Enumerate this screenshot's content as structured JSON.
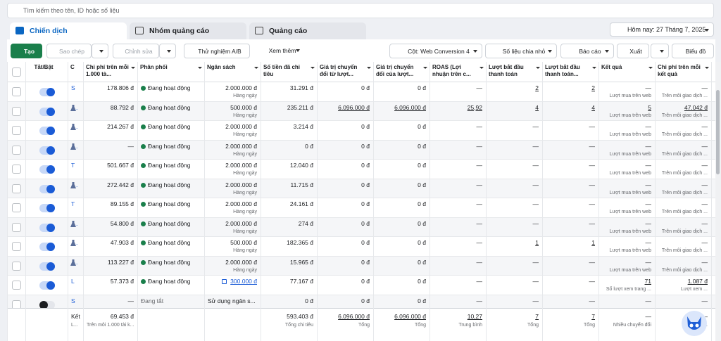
{
  "search_placeholder": "Tìm kiếm theo tên, ID hoặc số liệu",
  "tabs": [
    "Chiến dịch",
    "Nhóm quảng cáo",
    "Quảng cáo"
  ],
  "date_range": "Hôm nay: 27 Tháng 7, 2025",
  "toolbar": {
    "create": "Tạo",
    "copy": "Sao chép",
    "edit": "Chỉnh sửa",
    "ab_test": "Thử nghiệm A/B",
    "more": "Xem thêm",
    "columns": "Cột: Web Conversion 4",
    "breakdown": "Số liệu chia nhỏ",
    "reports": "Báo cáo",
    "export": "Xuất",
    "chart": "Biểu đồ"
  },
  "table": {
    "headers": [
      "Tắt/Bật",
      "C",
      "Chi phí trên mỗi 1.000 tà...",
      "Phân phối",
      "Ngân sách",
      "Số tiền đã chi tiêu",
      "Giá trị chuyển đổi từ lượt...",
      "Giá trị chuyển đổi của lượt...",
      "ROAS (Lợi nhuận trên c...",
      "Lượt bắt đầu thanh toán",
      "Lượt bắt đầu thanh toán...",
      "Kết quả",
      "Chi phí trên mỗi kết quả"
    ],
    "rows": [
      {
        "name": "S",
        "flask": false,
        "on": true,
        "cpm": "178.806 đ",
        "delivery": "Đang hoạt động",
        "budget": "2.000.000 đ",
        "budget_note": "Hàng ngày",
        "spent": "31.291 đ",
        "conv1": "0 đ",
        "conv2": "0 đ",
        "roas": "—",
        "chk1": "2",
        "chk2": "2",
        "result": "—",
        "result_note": "Lượt mua trên web",
        "cpr": "—",
        "cpr_note": "Trên mỗi giao dịch ..."
      },
      {
        "name": ".",
        "flask": true,
        "on": true,
        "cpm": "88.792 đ",
        "delivery": "Đang hoạt động",
        "budget": "500.000 đ",
        "budget_note": "Hàng ngày",
        "spent": "235.211 đ",
        "conv1": "6.096.000 đ",
        "conv2": "6.096.000 đ",
        "roas": "25,92",
        "chk1": "4",
        "chk2": "4",
        "result": "5",
        "result_note": "Lượt mua trên web",
        "cpr": "47.042 đ",
        "cpr_note": "Trên mỗi giao dịch ..."
      },
      {
        "name": ".",
        "flask": true,
        "on": true,
        "cpm": "214.267 đ",
        "delivery": "Đang hoạt động",
        "budget": "2.000.000 đ",
        "budget_note": "Hàng ngày",
        "spent": "3.214 đ",
        "conv1": "0 đ",
        "conv2": "0 đ",
        "roas": "—",
        "chk1": "—",
        "chk2": "—",
        "result": "—",
        "result_note": "Lượt mua trên web",
        "cpr": "—",
        "cpr_note": "Trên mỗi giao dịch ..."
      },
      {
        "name": ".",
        "flask": true,
        "on": true,
        "cpm": "—",
        "delivery": "Đang hoạt động",
        "budget": "2.000.000 đ",
        "budget_note": "Hàng ngày",
        "spent": "0 đ",
        "conv1": "0 đ",
        "conv2": "0 đ",
        "roas": "—",
        "chk1": "—",
        "chk2": "—",
        "result": "—",
        "result_note": "Lượt mua trên web",
        "cpr": "—",
        "cpr_note": "Trên mỗi giao dịch ..."
      },
      {
        "name": "T",
        "flask": false,
        "on": true,
        "cpm": "501.667 đ",
        "delivery": "Đang hoạt động",
        "budget": "2.000.000 đ",
        "budget_note": "Hàng ngày",
        "spent": "12.040 đ",
        "conv1": "0 đ",
        "conv2": "0 đ",
        "roas": "—",
        "chk1": "—",
        "chk2": "—",
        "result": "—",
        "result_note": "Lượt mua trên web",
        "cpr": "—",
        "cpr_note": "Trên mỗi giao dịch ..."
      },
      {
        "name": ".",
        "flask": true,
        "on": true,
        "cpm": "272.442 đ",
        "delivery": "Đang hoạt động",
        "budget": "2.000.000 đ",
        "budget_note": "Hàng ngày",
        "spent": "11.715 đ",
        "conv1": "0 đ",
        "conv2": "0 đ",
        "roas": "—",
        "chk1": "—",
        "chk2": "—",
        "result": "—",
        "result_note": "Lượt mua trên web",
        "cpr": "—",
        "cpr_note": "Trên mỗi giao dịch ..."
      },
      {
        "name": "T",
        "flask": false,
        "on": true,
        "cpm": "89.155 đ",
        "delivery": "Đang hoạt động",
        "budget": "2.000.000 đ",
        "budget_note": "Hàng ngày",
        "spent": "24.161 đ",
        "conv1": "0 đ",
        "conv2": "0 đ",
        "roas": "—",
        "chk1": "—",
        "chk2": "—",
        "result": "—",
        "result_note": "Lượt mua trên web",
        "cpr": "—",
        "cpr_note": "Trên mỗi giao dịch ..."
      },
      {
        "name": ".",
        "flask": true,
        "on": true,
        "cpm": "54.800 đ",
        "delivery": "Đang hoạt động",
        "budget": "2.000.000 đ",
        "budget_note": "Hàng ngày",
        "spent": "274 đ",
        "conv1": "0 đ",
        "conv2": "0 đ",
        "roas": "—",
        "chk1": "—",
        "chk2": "—",
        "result": "—",
        "result_note": "Lượt mua trên web",
        "cpr": "—",
        "cpr_note": "Trên mỗi giao dịch ..."
      },
      {
        "name": ".",
        "flask": true,
        "on": true,
        "cpm": "47.903 đ",
        "delivery": "Đang hoạt động",
        "budget": "500.000 đ",
        "budget_note": "Hàng ngày",
        "spent": "182.365 đ",
        "conv1": "0 đ",
        "conv2": "0 đ",
        "roas": "—",
        "chk1": "1",
        "chk2": "1",
        "result": "—",
        "result_note": "Lượt mua trên web",
        "cpr": "—",
        "cpr_note": "Trên mỗi giao dịch ..."
      },
      {
        "name": ".",
        "flask": true,
        "on": true,
        "cpm": "113.227 đ",
        "delivery": "Đang hoạt động",
        "budget": "2.000.000 đ",
        "budget_note": "Hàng ngày",
        "spent": "15.965 đ",
        "conv1": "0 đ",
        "conv2": "0 đ",
        "roas": "—",
        "chk1": "—",
        "chk2": "—",
        "result": "—",
        "result_note": "Lượt mua trên web",
        "cpr": "—",
        "cpr_note": "Trên mỗi giao dịch ..."
      },
      {
        "name": "L",
        "flask": false,
        "on": true,
        "cpm": "57.373 đ",
        "delivery": "Đang hoạt động",
        "budget": "300.000 đ",
        "budget_link": true,
        "spent": "77.167 đ",
        "conv1": "0 đ",
        "conv2": "0 đ",
        "roas": "—",
        "chk1": "—",
        "chk2": "—",
        "result": "71",
        "result_note": "Số lượt xem trang ...",
        "cpr": "1.087 đ",
        "cpr_note": "Lượt xem ..."
      },
      {
        "name": "S",
        "flask": false,
        "on": false,
        "cpm": "—",
        "delivery": "Đang tắt",
        "budget": "Sử dụng ngân s...",
        "spent": "0 đ",
        "conv1": "0 đ",
        "conv2": "0 đ",
        "roas": "—",
        "chk1": "—",
        "chk2": "—",
        "result": "—",
        "cpr": "—"
      }
    ],
    "footer": {
      "name": "Kết",
      "name_note": "L...",
      "cpm": "69.453 đ",
      "cpm_note": "Trên mỗi 1.000 tài k...",
      "spent": "593.403 đ",
      "spent_note": "Tổng chi tiêu",
      "conv1": "6.096.000 đ",
      "conv1_note": "Tổng",
      "conv2": "6.096.000 đ",
      "conv2_note": "Tổng",
      "roas": "10,27",
      "roas_note": "Trung bình",
      "chk1": "7",
      "chk1_note": "Tổng",
      "chk2": "7",
      "chk2_note": "Tổng",
      "result": "—",
      "result_note": "Nhiều chuyển đổi",
      "cpr": "—",
      "cpr_note": "Nhi..."
    }
  }
}
